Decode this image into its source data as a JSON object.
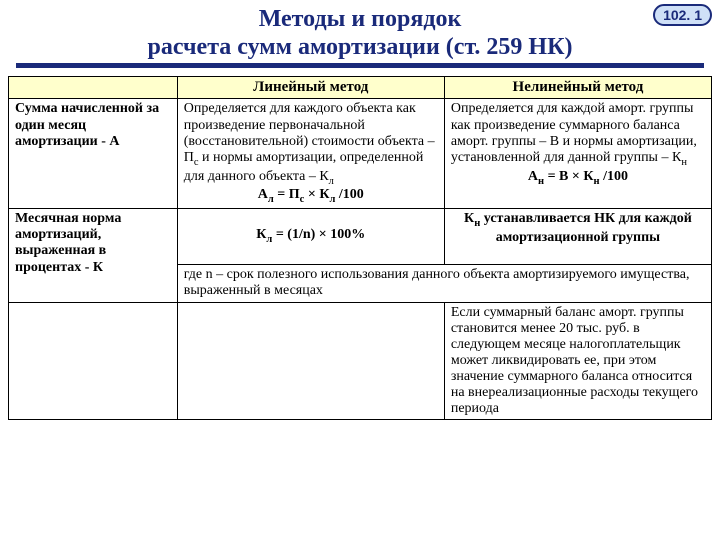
{
  "colors": {
    "title": "#1a2a7a",
    "underline": "#1a2a7a",
    "badge_border": "#1a2a7a",
    "badge_bg": "#cfe0f7",
    "badge_text": "#1a2a7a",
    "header_bg": "#ffffcc"
  },
  "fonts": {
    "title_size": "24px",
    "badge_size": "14px",
    "cell_size": "14px",
    "header_size": "15px"
  },
  "layout": {
    "col_widths": [
      "24%",
      "38%",
      "38%"
    ]
  },
  "badge": "102. 1",
  "title_line1": "Методы и порядок",
  "title_line2": "расчета сумм амортизации (ст. 259 НК)",
  "table": {
    "col_headers": [
      "",
      "Линейный метод",
      "Нелинейный метод"
    ],
    "rows": [
      {
        "label": "Сумма начисленной за один месяц амортизации - А",
        "linear": {
          "text1": "Определяется для каждого объекта как произведение первоначальной (восстановительной) стоимости объекта – П",
          "text2": " и нормы амортизации, определенной для данного объекта – К",
          "formula": "Ал = Пс × Кл /100"
        },
        "nonlinear": {
          "text1": "Определяется для каждой аморт. группы как произведение суммарного баланса аморт. группы – В и нормы амортизации, установленной для данной группы – К",
          "formula": "Ан = В × Кн /100"
        }
      },
      {
        "label": "Месячная норма амортизаций, выраженная в процентах - К",
        "linear_formula": "Кл = (1/n) × 100%",
        "nonlinear_text": "Кн устанавливается НК для каждой амортизационной группы",
        "footnote": "где n – срок полезного использования данного объекта амортизируемого имущества, выраженный в месяцах"
      },
      {
        "label": "",
        "linear": "",
        "nonlinear": "Если суммарный баланс аморт. группы становится менее 20 тыс. руб. в следующем месяце налогоплательщик может ликвидировать ее, при этом значение суммарного баланса относится на внереализационные расходы текущего периода"
      }
    ]
  }
}
